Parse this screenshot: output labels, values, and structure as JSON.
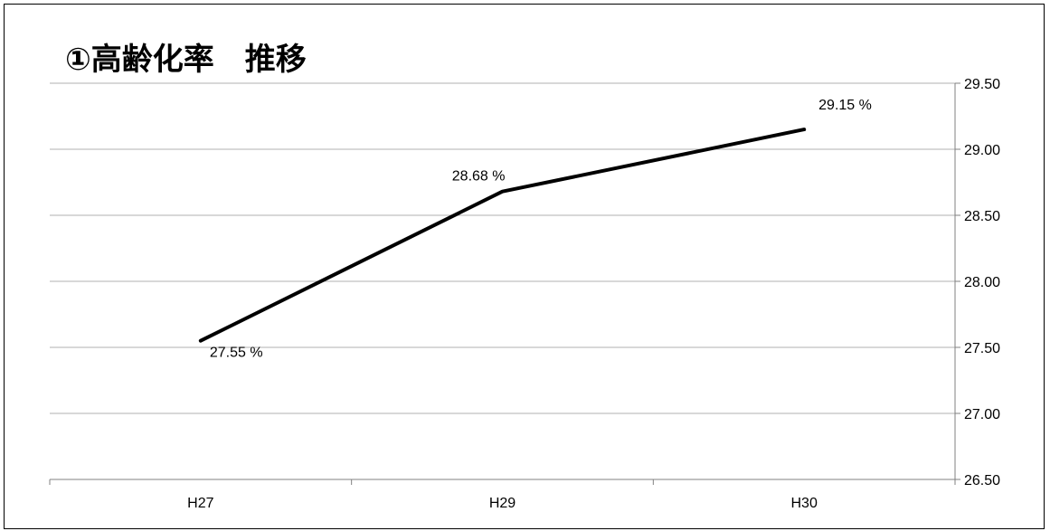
{
  "chart_data": {
    "type": "line",
    "title": "①高齢化率　推移",
    "categories": [
      "H27",
      "H29",
      "H30"
    ],
    "series": [
      {
        "values": [
          27.55,
          28.68,
          29.15
        ],
        "color": "#000000"
      }
    ],
    "data_labels": [
      "27.55 %",
      "28.68 %",
      "29.15 %"
    ],
    "y_axis_position": "right",
    "ylim": [
      26.5,
      29.5
    ],
    "y_ticks": [
      "26.50",
      "27.00",
      "27.50",
      "28.00",
      "28.50",
      "29.00",
      "29.50"
    ],
    "y_tick_values": [
      26.5,
      27.0,
      27.5,
      28.0,
      28.5,
      29.0,
      29.5
    ],
    "grid": true
  }
}
